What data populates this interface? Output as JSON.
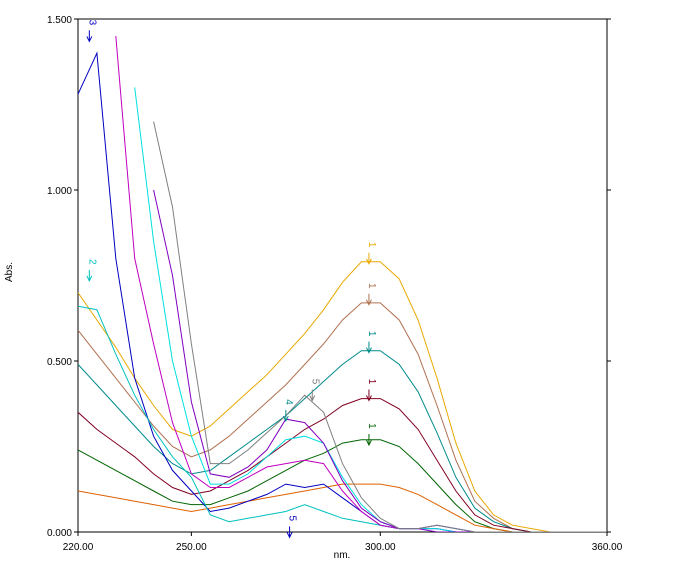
{
  "chart_data": {
    "type": "line",
    "x_label": "nm.",
    "y_label": "Abs.",
    "xlim": [
      220,
      360
    ],
    "ylim": [
      0,
      1.5
    ],
    "xticks": [
      {
        "value": 220,
        "label": "220.00"
      },
      {
        "value": 250,
        "label": "250.00"
      },
      {
        "value": 300,
        "label": "300.00"
      },
      {
        "value": 360,
        "label": "360.00"
      }
    ],
    "yticks": [
      {
        "value": 0,
        "label": "0.000"
      },
      {
        "value": 0.5,
        "label": "0.500"
      },
      {
        "value": 1,
        "label": "1.000"
      },
      {
        "value": 1.5,
        "label": "1.500"
      }
    ],
    "x": [
      220,
      225,
      230,
      235,
      240,
      245,
      250,
      255,
      260,
      265,
      270,
      275,
      280,
      285,
      290,
      295,
      300,
      305,
      310,
      315,
      320,
      325,
      330,
      335,
      340,
      345,
      350,
      355,
      360
    ],
    "series": [
      {
        "color": "#e8a800",
        "values": [
          0.7,
          0.62,
          0.54,
          0.45,
          0.37,
          0.3,
          0.28,
          0.31,
          0.36,
          0.41,
          0.46,
          0.52,
          0.58,
          0.65,
          0.73,
          0.79,
          0.79,
          0.74,
          0.62,
          0.45,
          0.26,
          0.12,
          0.05,
          0.02,
          0.01,
          0,
          0,
          0,
          0
        ]
      },
      {
        "color": "#b07050",
        "values": [
          0.59,
          0.52,
          0.45,
          0.38,
          0.31,
          0.25,
          0.22,
          0.24,
          0.28,
          0.33,
          0.38,
          0.43,
          0.49,
          0.55,
          0.62,
          0.67,
          0.67,
          0.62,
          0.52,
          0.37,
          0.21,
          0.09,
          0.04,
          0.01,
          0,
          0,
          0,
          0,
          0
        ]
      },
      {
        "color": "#008b8b",
        "values": [
          0.49,
          0.43,
          0.37,
          0.31,
          0.25,
          0.2,
          0.17,
          0.18,
          0.22,
          0.26,
          0.3,
          0.34,
          0.39,
          0.44,
          0.49,
          0.53,
          0.53,
          0.49,
          0.41,
          0.29,
          0.16,
          0.07,
          0.03,
          0.01,
          0,
          0,
          0,
          0,
          0
        ]
      },
      {
        "color": "#800020",
        "values": [
          0.35,
          0.3,
          0.26,
          0.22,
          0.17,
          0.13,
          0.11,
          0.12,
          0.15,
          0.18,
          0.22,
          0.26,
          0.3,
          0.33,
          0.37,
          0.39,
          0.39,
          0.36,
          0.3,
          0.21,
          0.12,
          0.05,
          0.02,
          0.01,
          0,
          0,
          0,
          0,
          0
        ]
      },
      {
        "color": "#006400",
        "values": [
          0.24,
          0.21,
          0.18,
          0.15,
          0.12,
          0.09,
          0.08,
          0.08,
          0.1,
          0.12,
          0.15,
          0.18,
          0.21,
          0.23,
          0.26,
          0.27,
          0.27,
          0.25,
          0.2,
          0.14,
          0.08,
          0.03,
          0.01,
          0,
          0,
          0,
          0,
          0,
          0
        ]
      },
      {
        "color": "#e06000",
        "values": [
          0.12,
          0.11,
          0.1,
          0.09,
          0.08,
          0.07,
          0.06,
          0.07,
          0.08,
          0.09,
          0.1,
          0.11,
          0.12,
          0.13,
          0.14,
          0.14,
          0.14,
          0.13,
          0.11,
          0.08,
          0.05,
          0.02,
          0.01,
          0,
          0,
          0,
          0,
          0,
          0
        ]
      },
      {
        "color": "#0000c0",
        "values": [
          1.28,
          1.4,
          0.8,
          0.45,
          0.28,
          0.18,
          0.12,
          0.06,
          0.07,
          0.09,
          0.11,
          0.14,
          0.13,
          0.14,
          0.1,
          0.06,
          0.02,
          0.01,
          0.01,
          0.02,
          0.01,
          0,
          0,
          0,
          0,
          0,
          0,
          0,
          0
        ]
      },
      {
        "color": "#00c0c0",
        "values": [
          0.66,
          0.65,
          0.52,
          0.4,
          0.3,
          0.22,
          0.16,
          0.05,
          0.03,
          0.04,
          0.05,
          0.06,
          0.08,
          0.06,
          0.04,
          0.03,
          0.02,
          0.01,
          0.01,
          0.01,
          0,
          0,
          0,
          0,
          0,
          0,
          0,
          0,
          0
        ]
      },
      {
        "color": "#c000c0",
        "values": [
          null,
          null,
          1.45,
          0.8,
          0.55,
          0.32,
          0.17,
          0.13,
          0.13,
          0.16,
          0.19,
          0.2,
          0.21,
          0.2,
          0.12,
          0.06,
          0.02,
          0.01,
          0.01,
          0.01,
          0,
          0,
          0,
          0,
          0,
          0,
          0,
          0,
          0
        ]
      },
      {
        "color": "#00e0e0",
        "values": [
          null,
          null,
          null,
          1.3,
          0.85,
          0.5,
          0.28,
          0.14,
          0.14,
          0.17,
          0.22,
          0.27,
          0.28,
          0.26,
          0.16,
          0.08,
          0.03,
          0.01,
          0.01,
          0.01,
          0,
          0,
          0,
          0,
          0,
          0,
          0,
          0,
          0
        ]
      },
      {
        "color": "#8000c0",
        "values": [
          null,
          null,
          null,
          null,
          1.0,
          0.75,
          0.38,
          0.17,
          0.16,
          0.19,
          0.24,
          0.33,
          0.32,
          0.26,
          0.15,
          0.07,
          0.03,
          0.01,
          0.01,
          0,
          0,
          0,
          0,
          0,
          0,
          0,
          0,
          0,
          0
        ]
      },
      {
        "color": "#808080",
        "values": [
          null,
          null,
          null,
          null,
          1.2,
          0.95,
          0.55,
          0.2,
          0.2,
          0.24,
          0.29,
          0.34,
          0.4,
          0.35,
          0.2,
          0.1,
          0.04,
          0.01,
          0.01,
          0.02,
          0.01,
          0,
          0,
          0,
          0,
          0,
          0,
          0,
          0
        ]
      }
    ],
    "annotations": [
      {
        "text": "1",
        "x": 297,
        "y": 0.84,
        "color": "#e8a800"
      },
      {
        "text": "1",
        "x": 297,
        "y": 0.72,
        "color": "#b07050"
      },
      {
        "text": "1",
        "x": 297,
        "y": 0.58,
        "color": "#008b8b"
      },
      {
        "text": "1",
        "x": 297,
        "y": 0.44,
        "color": "#800020"
      },
      {
        "text": "1",
        "x": 297,
        "y": 0.31,
        "color": "#006400"
      },
      {
        "text": "3",
        "x": 223,
        "y": 1.49,
        "color": "#0000c0"
      },
      {
        "text": "2",
        "x": 223,
        "y": 0.79,
        "color": "#00c0c0"
      },
      {
        "text": "5",
        "x": 282,
        "y": 0.44,
        "color": "#808080"
      },
      {
        "text": "4",
        "x": 275,
        "y": 0.38,
        "color": "#008b8b"
      },
      {
        "text": "5",
        "x": 276,
        "y": 0.04,
        "color": "#0000c0"
      }
    ]
  }
}
